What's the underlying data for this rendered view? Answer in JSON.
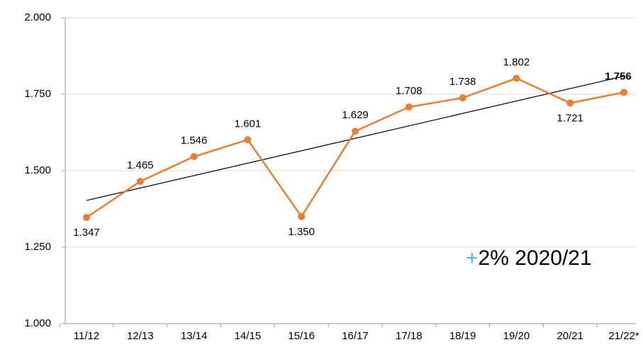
{
  "chart_data": {
    "type": "line",
    "categories": [
      "11/12",
      "12/13",
      "13/14",
      "14/15",
      "15/16",
      "16/17",
      "17/18",
      "18/19",
      "19/20",
      "20/21",
      "21/22*"
    ],
    "series": [
      {
        "name": null,
        "color": "#ed7d31",
        "values": [
          1347,
          1465,
          1546,
          1601,
          1350,
          1629,
          1708,
          1738,
          1802,
          1721,
          1756
        ],
        "value_labels": [
          "1.347",
          "1.465",
          "1.546",
          "1.601",
          "1.350",
          "1.629",
          "1.708",
          "1.738",
          "1.802",
          "1.721",
          "1.756"
        ],
        "label_positions": [
          "below",
          "above",
          "above",
          "above",
          "below",
          "above",
          "above",
          "above",
          "above",
          "below",
          "above"
        ]
      }
    ],
    "ylim": [
      1000,
      2000
    ],
    "yticks": [
      {
        "value": 1000,
        "label": "1.000"
      },
      {
        "value": 1250,
        "label": "1.250"
      },
      {
        "value": 1500,
        "label": "1.500"
      },
      {
        "value": 1750,
        "label": "1.750"
      },
      {
        "value": 2000,
        "label": "2.000"
      }
    ],
    "grid": true,
    "trendline": true,
    "trendline_color": "#000000",
    "annotation": {
      "sign": "+",
      "text": "2% 2020/21"
    }
  }
}
